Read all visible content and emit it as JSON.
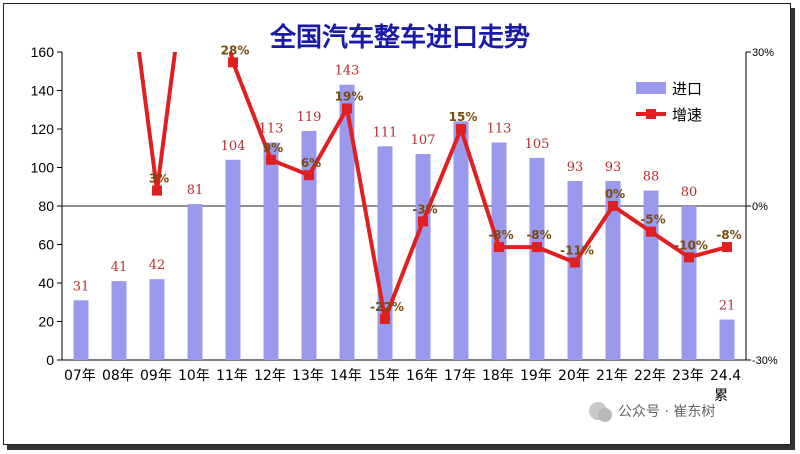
{
  "chart_data": {
    "type": "bar",
    "title": "全国汽车整车进口走势",
    "categories": [
      "07年",
      "08年",
      "09年",
      "10年",
      "11年",
      "12年",
      "13年",
      "14年",
      "15年",
      "16年",
      "17年",
      "18年",
      "19年",
      "20年",
      "21年",
      "22年",
      "23年",
      "24.4累"
    ],
    "ylim": [
      0,
      160
    ],
    "yticks": [
      "0",
      "20",
      "40",
      "60",
      "80",
      "100",
      "120",
      "140",
      "160"
    ],
    "y2lim": [
      -30,
      30
    ],
    "y2ticks": [
      "-30%",
      "0%",
      "30%"
    ],
    "legend_position": "top-right",
    "grid": false,
    "series": [
      {
        "name": "进口",
        "type": "bar",
        "color": "#9999ee",
        "values": [
          31,
          41,
          42,
          81,
          104,
          113,
          119,
          143,
          111,
          107,
          124,
          113,
          105,
          93,
          93,
          88,
          80,
          21
        ],
        "labels": [
          "31",
          "41",
          "42",
          "81",
          "104",
          "113",
          "119",
          "143",
          "111",
          "107",
          "",
          "113",
          "105",
          "93",
          "93",
          "88",
          "80",
          "21"
        ]
      },
      {
        "name": "增速",
        "type": "line",
        "axis": "right",
        "color": "#e02020",
        "values": [
          null,
          null,
          3,
          null,
          28,
          9,
          6,
          19,
          -22,
          -3,
          15,
          -8,
          -8,
          -11,
          0,
          -5,
          -10,
          -8
        ],
        "labels": [
          "",
          "",
          "3%",
          "",
          "28%",
          "9%",
          "6%",
          "19%",
          "-22%",
          "-3%",
          "15%",
          "-8%",
          "-8%",
          "-11%",
          "0%",
          "-5%",
          "-10%",
          "-8%"
        ]
      }
    ]
  },
  "watermark": "公众号 · 崔东树"
}
